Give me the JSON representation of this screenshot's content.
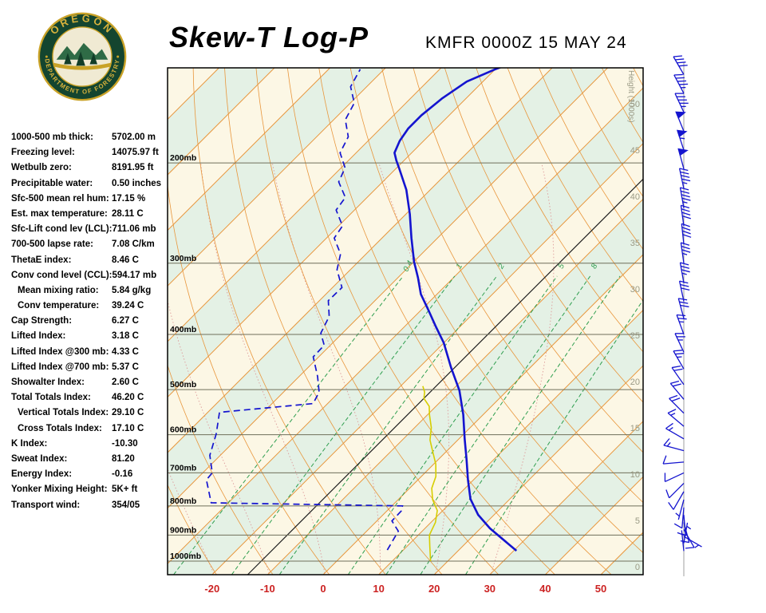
{
  "header": {
    "title": "Skew-T Log-P",
    "station_line": "KMFR 0000Z 15 MAY 24"
  },
  "logo": {
    "top_text": "OREGON",
    "bottom_text": "DEPARTMENT OF FORESTRY"
  },
  "stats": [
    {
      "label": "1000-500 mb thick:",
      "value": "5702.00 m",
      "indent": false
    },
    {
      "label": "Freezing level:",
      "value": "14075.97 ft",
      "indent": false
    },
    {
      "label": "Wetbulb zero:",
      "value": "8191.95 ft",
      "indent": false
    },
    {
      "label": "Precipitable water:",
      "value": "0.50 inches",
      "indent": false
    },
    {
      "label": "Sfc-500 mean rel hum:",
      "value": "17.15 %",
      "indent": false
    },
    {
      "label": "Est. max temperature:",
      "value": "28.11 C",
      "indent": false
    },
    {
      "label": "Sfc-Lift cond lev (LCL):",
      "value": "711.06 mb",
      "indent": false
    },
    {
      "label": "700-500 lapse rate:",
      "value": "7.08 C/km",
      "indent": false
    },
    {
      "label": "ThetaE index:",
      "value": "8.46 C",
      "indent": false
    },
    {
      "label": "Conv cond level (CCL):",
      "value": "594.17 mb",
      "indent": false
    },
    {
      "label": "Mean mixing ratio:",
      "value": "5.84 g/kg",
      "indent": true
    },
    {
      "label": "Conv temperature:",
      "value": "39.24 C",
      "indent": true
    },
    {
      "label": "Cap Strength:",
      "value": "6.27 C",
      "indent": false
    },
    {
      "label": "Lifted Index:",
      "value": "3.18 C",
      "indent": false
    },
    {
      "label": "Lifted Index @300 mb:",
      "value": "4.33 C",
      "indent": false
    },
    {
      "label": "Lifted Index @700 mb:",
      "value": "5.37 C",
      "indent": false
    },
    {
      "label": "Showalter Index:",
      "value": "2.60 C",
      "indent": false
    },
    {
      "label": "Total Totals Index:",
      "value": "46.20 C",
      "indent": false
    },
    {
      "label": "Vertical Totals Index:",
      "value": "29.10 C",
      "indent": true
    },
    {
      "label": "Cross Totals Index:",
      "value": "17.10 C",
      "indent": true
    },
    {
      "label": "K Index:",
      "value": "-10.30",
      "indent": false
    },
    {
      "label": "Sweat Index:",
      "value": "81.20",
      "indent": false
    },
    {
      "label": "Energy Index:",
      "value": "-0.16",
      "indent": false
    },
    {
      "label": "Yonker Mixing Height:",
      "value": "5K+ ft",
      "indent": false
    },
    {
      "label": "Transport wind:",
      "value": "354/05",
      "indent": false
    }
  ],
  "chart_data": {
    "type": "line",
    "subtype": "skewt-logp-sounding",
    "station": "KMFR",
    "valid_time": "0000Z 15 MAY 24",
    "x_axis": {
      "label_ticks_c": [
        -20,
        -10,
        0,
        10,
        20,
        30,
        40,
        50
      ]
    },
    "pressure_lines_mb": [
      200,
      300,
      400,
      500,
      600,
      700,
      800,
      900,
      1000
    ],
    "pressure_label_suffix": "mb",
    "pressure_range_mb": [
      136,
      1056
    ],
    "height_axis": {
      "title": "Height (1000s)",
      "labels_kft": [
        50,
        45,
        40,
        35,
        30,
        25,
        20,
        15,
        10,
        5,
        0
      ]
    },
    "isotherm_step_c": 10,
    "isotherm_range_c": [
      -140,
      60
    ],
    "reference_diagonal_c": -13.6,
    "dry_adiabats_theta_k": [
      230,
      240,
      250,
      260,
      270,
      280,
      290,
      300,
      310,
      320,
      330,
      340,
      350,
      360,
      370,
      380,
      390,
      400,
      410,
      420,
      430,
      440,
      450
    ],
    "moist_adiabats_surface_c": [
      -20,
      -10,
      0,
      10,
      20,
      30
    ],
    "mixing_ratio_lines_gkg": [
      0.4,
      1,
      2,
      5,
      8,
      12,
      20
    ],
    "mixing_ratio_label_values": [
      0.4,
      1,
      2,
      5,
      8
    ],
    "mixing_ratio_label_pressure_mb": 305,
    "series": {
      "temperature_p_c": [
        [
          959,
          30.5
        ],
        [
          876,
          21.7
        ],
        [
          829,
          17.1
        ],
        [
          778,
          12.9
        ],
        [
          720,
          9.0
        ],
        [
          662,
          5.0
        ],
        [
          611,
          1.1
        ],
        [
          553,
          -3.6
        ],
        [
          502,
          -8.6
        ],
        [
          457,
          -14.3
        ],
        [
          414,
          -20.0
        ],
        [
          388,
          -24.3
        ],
        [
          363,
          -28.6
        ],
        [
          340,
          -32.9
        ],
        [
          318,
          -36.4
        ],
        [
          298,
          -40.0
        ],
        [
          271,
          -44.7
        ],
        [
          246,
          -49.3
        ],
        [
          223,
          -54.3
        ],
        [
          205,
          -59.3
        ],
        [
          198,
          -61.4
        ],
        [
          192,
          -63.1
        ],
        [
          183,
          -64.3
        ],
        [
          174,
          -65.0
        ],
        [
          165,
          -65.0
        ],
        [
          154,
          -64.3
        ],
        [
          144,
          -62.9
        ],
        [
          137,
          -60.0
        ],
        [
          132,
          -57.1
        ]
      ],
      "dewpoint_p_c": [
        [
          956,
          7.1
        ],
        [
          886,
          5.7
        ],
        [
          850,
          2.7
        ],
        [
          817,
          2.6
        ],
        [
          800,
          1.9
        ],
        [
          790,
          -33.1
        ],
        [
          720,
          -38.1
        ],
        [
          700,
          -38.3
        ],
        [
          652,
          -41.9
        ],
        [
          598,
          -44.6
        ],
        [
          548,
          -47.9
        ],
        [
          529,
          -32.6
        ],
        [
          505,
          -33.6
        ],
        [
          474,
          -36.7
        ],
        [
          438,
          -41.0
        ],
        [
          418,
          -41.1
        ],
        [
          398,
          -43.9
        ],
        [
          372,
          -45.4
        ],
        [
          349,
          -48.4
        ],
        [
          331,
          -48.3
        ],
        [
          308,
          -52.4
        ],
        [
          289,
          -54.6
        ],
        [
          271,
          -58.6
        ],
        [
          258,
          -59.3
        ],
        [
          242,
          -63.3
        ],
        [
          230,
          -63.9
        ],
        [
          216,
          -67.9
        ],
        [
          204,
          -69.3
        ],
        [
          192,
          -72.9
        ],
        [
          180,
          -74.3
        ],
        [
          168,
          -77.9
        ],
        [
          157,
          -79.3
        ],
        [
          147,
          -82.9
        ],
        [
          137,
          -84.3
        ]
      ],
      "wetbulb_p_c": [
        [
          1000,
          16.9
        ],
        [
          940,
          14.0
        ],
        [
          900,
          12.0
        ],
        [
          855,
          10.8
        ],
        [
          815,
          9.0
        ],
        [
          780,
          6.2
        ],
        [
          745,
          4.0
        ],
        [
          710,
          2.6
        ],
        [
          676,
          0.4
        ],
        [
          645,
          -2.2
        ],
        [
          613,
          -5.0
        ],
        [
          583,
          -7.0
        ],
        [
          554,
          -9.6
        ],
        [
          535,
          -11.2
        ],
        [
          518,
          -13.6
        ],
        [
          505,
          -14.6
        ],
        [
          493,
          -16.0
        ]
      ]
    },
    "wind_barbs": [
      {
        "p": 960,
        "dir": 354,
        "spd": 5
      },
      {
        "p": 930,
        "dir": 10,
        "spd": 5
      },
      {
        "p": 905,
        "dir": 120,
        "spd": 5
      },
      {
        "p": 880,
        "dir": 150,
        "spd": 10
      },
      {
        "p": 855,
        "dir": 165,
        "spd": 10
      },
      {
        "p": 830,
        "dir": 175,
        "spd": 10
      },
      {
        "p": 805,
        "dir": 185,
        "spd": 10
      },
      {
        "p": 780,
        "dir": 195,
        "spd": 5
      },
      {
        "p": 755,
        "dir": 210,
        "spd": 10
      },
      {
        "p": 730,
        "dir": 225,
        "spd": 10
      },
      {
        "p": 700,
        "dir": 245,
        "spd": 10
      },
      {
        "p": 670,
        "dir": 265,
        "spd": 10
      },
      {
        "p": 640,
        "dir": 285,
        "spd": 15
      },
      {
        "p": 610,
        "dir": 300,
        "spd": 15
      },
      {
        "p": 580,
        "dir": 310,
        "spd": 15
      },
      {
        "p": 550,
        "dir": 315,
        "spd": 20
      },
      {
        "p": 520,
        "dir": 320,
        "spd": 20
      },
      {
        "p": 490,
        "dir": 325,
        "spd": 20
      },
      {
        "p": 460,
        "dir": 330,
        "spd": 25
      },
      {
        "p": 430,
        "dir": 335,
        "spd": 25
      },
      {
        "p": 400,
        "dir": 340,
        "spd": 25
      },
      {
        "p": 375,
        "dir": 345,
        "spd": 30
      },
      {
        "p": 350,
        "dir": 348,
        "spd": 30
      },
      {
        "p": 325,
        "dir": 350,
        "spd": 35
      },
      {
        "p": 300,
        "dir": 352,
        "spd": 35
      },
      {
        "p": 278,
        "dir": 354,
        "spd": 40
      },
      {
        "p": 258,
        "dir": 352,
        "spd": 40
      },
      {
        "p": 240,
        "dir": 350,
        "spd": 45
      },
      {
        "p": 222,
        "dir": 348,
        "spd": 45
      },
      {
        "p": 205,
        "dir": 345,
        "spd": 50
      },
      {
        "p": 190,
        "dir": 342,
        "spd": 55
      },
      {
        "p": 176,
        "dir": 338,
        "spd": 50
      },
      {
        "p": 163,
        "dir": 335,
        "spd": 45
      },
      {
        "p": 151,
        "dir": 332,
        "spd": 45
      },
      {
        "p": 140,
        "dir": 330,
        "spd": 40
      }
    ],
    "colors": {
      "temperature": "#1414cf",
      "dewpoint": "#1414cf",
      "wetbulb": "#d6ce00",
      "isotherm": "#e8963c",
      "dry_adiabat": "#e8963c",
      "moist_adiabat": "#dd9a9a",
      "mixing_ratio": "#2e9e4f",
      "band_cream": "#fcf7e5",
      "band_green": "#e4f1e5",
      "pressure_line": "#6f6f5a",
      "height_label": "#9a9a85",
      "temp_label": "#cc2222",
      "wind_barb": "#1414cf",
      "reference_line": "#222222",
      "logo_green": "#14452f",
      "logo_gold": "#c9a227"
    }
  }
}
